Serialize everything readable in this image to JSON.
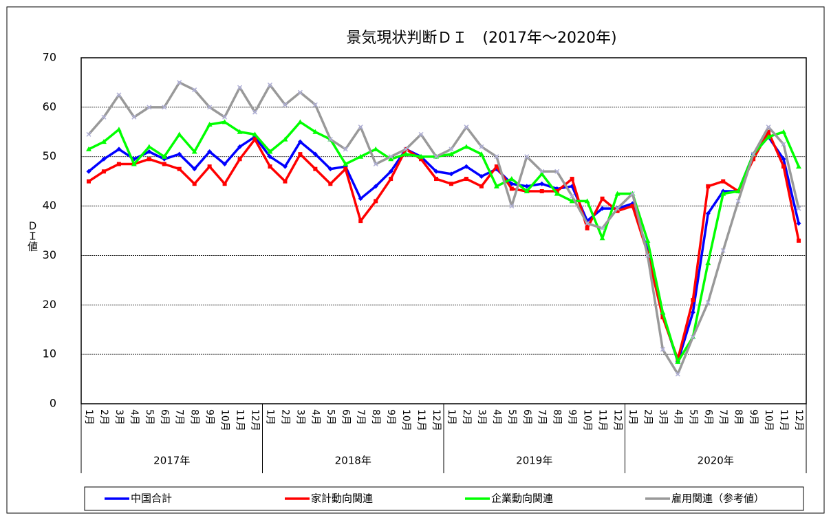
{
  "chart_data": {
    "type": "line",
    "title": "景気現状判断ＤＩ　(2017年～2020年)",
    "y_label": "ＤＩ値",
    "categories": [
      "1月",
      "2月",
      "3月",
      "4月",
      "5月",
      "6月",
      "7月",
      "8月",
      "9月",
      "10月",
      "11月",
      "12月",
      "1月",
      "2月",
      "3月",
      "4月",
      "5月",
      "6月",
      "7月",
      "8月",
      "9月",
      "10月",
      "11月",
      "12月",
      "1月",
      "2月",
      "3月",
      "4月",
      "5月",
      "6月",
      "7月",
      "8月",
      "9月",
      "10月",
      "11月",
      "12月",
      "1月",
      "2月",
      "3月",
      "4月",
      "5月",
      "6月",
      "7月",
      "8月",
      "9月",
      "10月",
      "11月",
      "12月"
    ],
    "groups": [
      "2017年",
      "2018年",
      "2019年",
      "2020年"
    ],
    "ylim": [
      0,
      70
    ],
    "yticks": [
      0,
      10,
      20,
      30,
      40,
      50,
      60,
      70
    ],
    "grid": true,
    "series": [
      {
        "name": "中国合計",
        "color": "#0000ff",
        "marker": "diamond",
        "values": [
          47,
          49.5,
          51.5,
          49.5,
          51,
          49.5,
          50.5,
          47.5,
          51,
          48.5,
          52,
          54,
          50,
          48,
          53,
          50.5,
          47.5,
          48,
          41.5,
          44,
          47,
          51.5,
          50,
          47,
          46.5,
          48,
          46,
          47.5,
          44.5,
          44,
          44.5,
          43.5,
          44,
          37,
          39.5,
          39.5,
          40.5,
          31,
          18,
          8.5,
          18.5,
          38.5,
          43,
          43,
          50.5,
          54,
          49.5,
          36.5
        ]
      },
      {
        "name": "家計動向関連",
        "color": "#ff0000",
        "marker": "square",
        "values": [
          45,
          47,
          48.5,
          48.5,
          49.5,
          48.5,
          47.5,
          44.5,
          48,
          44.5,
          49.5,
          53.5,
          48,
          45,
          50.5,
          47.5,
          44.5,
          47.5,
          37,
          41,
          45.5,
          51.5,
          49.5,
          45.5,
          44.5,
          45.5,
          44,
          48,
          43.5,
          43,
          43,
          43,
          45.5,
          35.5,
          41.5,
          39,
          40,
          30.5,
          17.5,
          9,
          21,
          44,
          45,
          43,
          49.5,
          55,
          48,
          33
        ]
      },
      {
        "name": "企業動向関連",
        "color": "#00ff00",
        "marker": "triangle",
        "values": [
          51.5,
          53,
          55.5,
          48.5,
          52,
          50,
          54.5,
          51,
          56.5,
          57,
          55,
          54.5,
          51,
          53.5,
          57,
          55,
          53.5,
          48.5,
          50,
          51.5,
          49.5,
          50.5,
          50,
          50,
          50.5,
          52,
          50.5,
          44,
          45.5,
          43,
          46.5,
          42.5,
          41,
          41,
          33.5,
          42.5,
          42.5,
          33,
          18.5,
          8.5,
          13.5,
          28.5,
          42.5,
          43,
          50.5,
          54,
          55,
          48
        ]
      },
      {
        "name": "雇用関連（参考値）",
        "color": "#999999",
        "marker": "x",
        "values": [
          54.5,
          58,
          62.5,
          58,
          60,
          60,
          65,
          63.5,
          60,
          58,
          64,
          59,
          64.5,
          60.5,
          63,
          60.5,
          53.5,
          51.5,
          56,
          48.5,
          50,
          51.5,
          54.5,
          50,
          51.5,
          56,
          52,
          50,
          40,
          50,
          47,
          47,
          42,
          36.5,
          35.5,
          39.5,
          42.5,
          30,
          11,
          6,
          13.5,
          20.5,
          31,
          41,
          50.5,
          56,
          52.5,
          39.5
        ]
      }
    ]
  }
}
